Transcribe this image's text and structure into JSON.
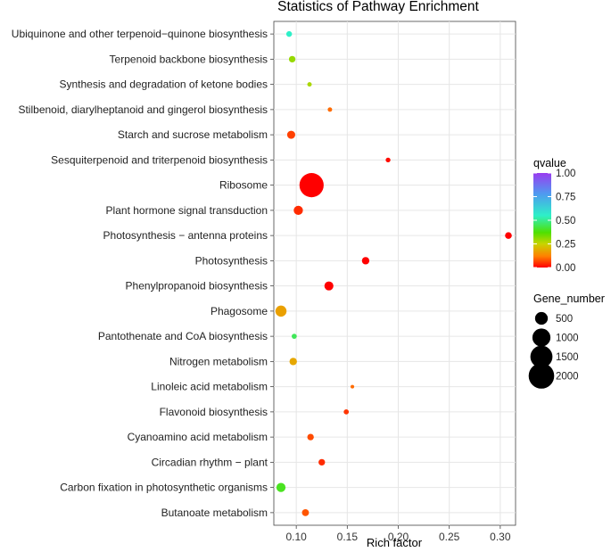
{
  "chart_data": {
    "type": "scatter",
    "title": "Statistics of Pathway Enrichment",
    "xlabel": "Rich factor",
    "ylabel": "",
    "xlim": [
      0.078,
      0.315
    ],
    "xticks": [
      0.1,
      0.15,
      0.2,
      0.25,
      0.3
    ],
    "xtick_labels": [
      "0.10",
      "0.15",
      "0.20",
      "0.25",
      "0.30"
    ],
    "grid": true,
    "points": [
      {
        "pathway": "Ubiquinone and other terpenoid−quinone biosynthesis",
        "rich_factor": 0.093,
        "qvalue": 0.55,
        "gene_number": 100
      },
      {
        "pathway": "Terpenoid backbone biosynthesis",
        "rich_factor": 0.096,
        "qvalue": 0.3,
        "gene_number": 130
      },
      {
        "pathway": "Synthesis and degradation of ketone bodies",
        "rich_factor": 0.113,
        "qvalue": 0.28,
        "gene_number": 60
      },
      {
        "pathway": "Stilbenoid, diarylheptanoid and gingerol biosynthesis",
        "rich_factor": 0.133,
        "qvalue": 0.1,
        "gene_number": 60
      },
      {
        "pathway": "Starch and sucrose metabolism",
        "rich_factor": 0.095,
        "qvalue": 0.06,
        "gene_number": 200
      },
      {
        "pathway": "Sesquiterpenoid and triterpenoid biosynthesis",
        "rich_factor": 0.19,
        "qvalue": 0.01,
        "gene_number": 70
      },
      {
        "pathway": "Ribosome",
        "rich_factor": 0.115,
        "qvalue": 0.0,
        "gene_number": 1800
      },
      {
        "pathway": "Plant hormone signal transduction",
        "rich_factor": 0.102,
        "qvalue": 0.04,
        "gene_number": 260
      },
      {
        "pathway": "Photosynthesis − antenna proteins",
        "rich_factor": 0.308,
        "qvalue": 0.0,
        "gene_number": 140
      },
      {
        "pathway": "Photosynthesis",
        "rich_factor": 0.168,
        "qvalue": 0.0,
        "gene_number": 170
      },
      {
        "pathway": "Phenylpropanoid biosynthesis",
        "rich_factor": 0.132,
        "qvalue": 0.0,
        "gene_number": 250
      },
      {
        "pathway": "Phagosome",
        "rich_factor": 0.085,
        "qvalue": 0.17,
        "gene_number": 380
      },
      {
        "pathway": "Pantothenate and CoA biosynthesis",
        "rich_factor": 0.098,
        "qvalue": 0.45,
        "gene_number": 80
      },
      {
        "pathway": "Nitrogen metabolism",
        "rich_factor": 0.097,
        "qvalue": 0.18,
        "gene_number": 170
      },
      {
        "pathway": "Linoleic acid metabolism",
        "rich_factor": 0.155,
        "qvalue": 0.1,
        "gene_number": 40
      },
      {
        "pathway": "Flavonoid biosynthesis",
        "rich_factor": 0.149,
        "qvalue": 0.05,
        "gene_number": 80
      },
      {
        "pathway": "Cyanoamino acid metabolism",
        "rich_factor": 0.114,
        "qvalue": 0.07,
        "gene_number": 130
      },
      {
        "pathway": "Circadian rhythm − plant",
        "rich_factor": 0.125,
        "qvalue": 0.04,
        "gene_number": 130
      },
      {
        "pathway": "Carbon fixation in photosynthetic organisms",
        "rich_factor": 0.085,
        "qvalue": 0.4,
        "gene_number": 260
      },
      {
        "pathway": "Butanoate metabolism",
        "rich_factor": 0.109,
        "qvalue": 0.08,
        "gene_number": 150
      }
    ],
    "color_legend": {
      "title": "qvalue",
      "ticks": [
        1.0,
        0.75,
        0.5,
        0.25,
        0.0
      ],
      "tick_labels": [
        "1.00",
        "0.75",
        "0.50",
        "0.25",
        "0.00"
      ],
      "colors_low_to_high": [
        "#ff0000",
        "#ff8000",
        "#c8d400",
        "#4fe000",
        "#2ef0c8",
        "#4f9af0",
        "#9a3cf0"
      ]
    },
    "size_legend": {
      "title": "Gene_number",
      "values": [
        500,
        1000,
        1500,
        2000
      ],
      "labels": [
        "500",
        "1000",
        "1500",
        "2000"
      ],
      "color": "#000000"
    }
  }
}
